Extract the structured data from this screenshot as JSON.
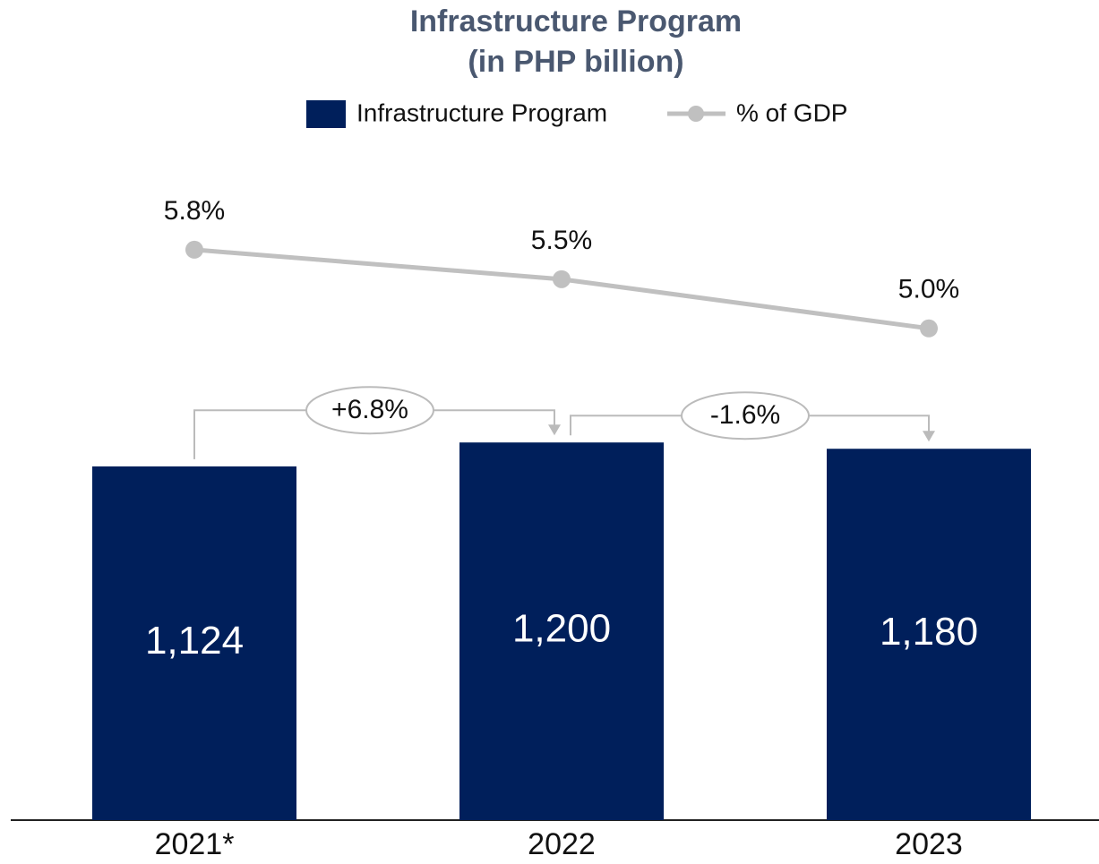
{
  "chart_data": {
    "type": "bar",
    "title": "Infrastructure Program",
    "subtitle": "(in PHP billion)",
    "categories": [
      "2021*",
      "2022",
      "2023"
    ],
    "series": [
      {
        "name": "Infrastructure Program",
        "color": "#001f5b",
        "values": [
          1124,
          1200,
          1180
        ],
        "value_labels": [
          "1,124",
          "1,200",
          "1,180"
        ]
      },
      {
        "name": "% of GDP",
        "type": "line",
        "axis": "y2",
        "color": "#c0c0c0",
        "values": [
          5.8,
          5.5,
          5.0
        ],
        "value_labels": [
          "5.8%",
          "5.5%",
          "5.0%"
        ]
      }
    ],
    "annotations": [
      "+6.8%",
      "-1.6%"
    ],
    "ylim": [
      0,
      2000
    ],
    "y2lim": [
      0,
      6.4
    ],
    "legend": "top"
  }
}
